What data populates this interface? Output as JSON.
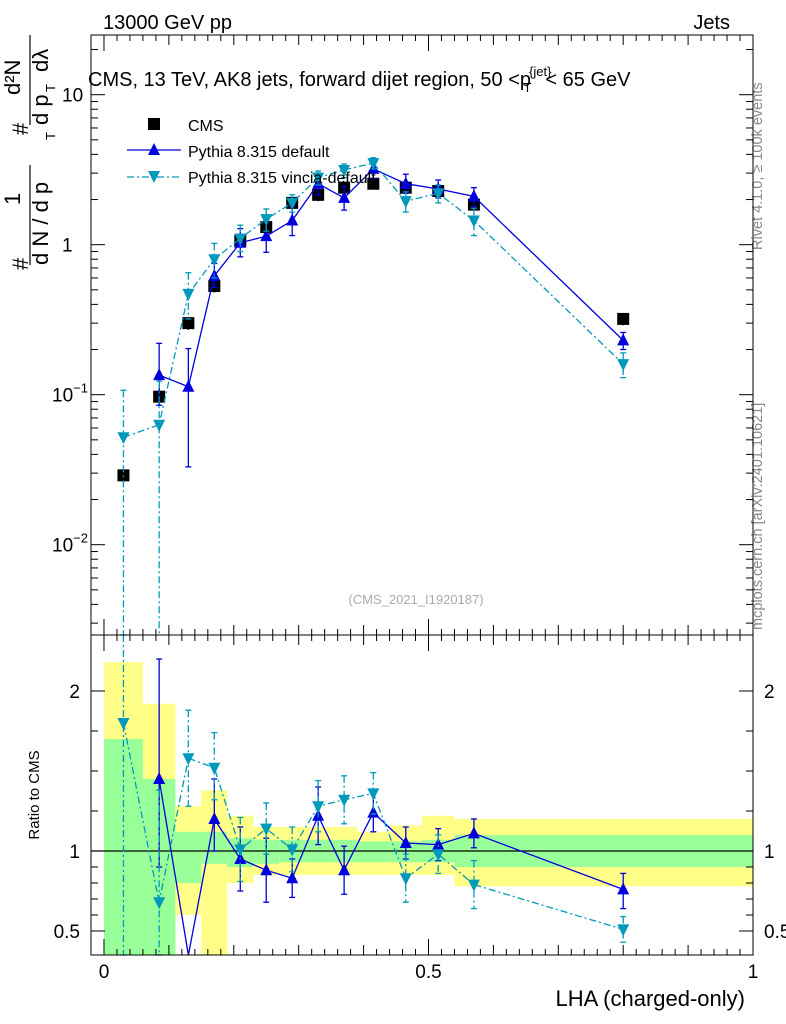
{
  "header": {
    "left": "13000 GeV pp",
    "right": "Jets"
  },
  "side_labels": {
    "rivet": "Rivet 4.1.0, ≥ 100k events",
    "mcplots": "mcplots.cern.ch [arXiv:2401.10621]"
  },
  "title": {
    "prefix": "CMS, 13 TeV, AK8 jets, forward dijet region, 50 <p",
    "sup": "{jet}",
    "sub": "T",
    "suffix": "< 65 GeV"
  },
  "analysis_id": "(CMS_2021_I1920187)",
  "colors": {
    "data": "#000000",
    "default": "#0000dd",
    "vincia": "#0099bb",
    "band_inner": "#99ff99",
    "band_outer": "#ffff88"
  },
  "chart_data": [
    {
      "type": "scatter",
      "panel": "main",
      "yscale": "log",
      "ylim": [
        0.0025,
        25
      ],
      "xlim": [
        -0.02,
        1.0
      ],
      "ylabel_parts": [
        "#",
        "1",
        "d N / d p",
        "T",
        "#",
        "d²N",
        "d p",
        "T",
        "dλ"
      ],
      "y_ticks": [
        {
          "value": 0.01,
          "base": "10",
          "exp": "−2"
        },
        {
          "value": 0.1,
          "base": "10",
          "exp": "−1"
        },
        {
          "value": 1,
          "base": "1",
          "exp": ""
        },
        {
          "value": 10,
          "base": "10",
          "exp": ""
        }
      ],
      "series": [
        {
          "name": "CMS",
          "marker": "square",
          "x": [
            0.03,
            0.085,
            0.13,
            0.17,
            0.21,
            0.25,
            0.29,
            0.33,
            0.37,
            0.415,
            0.465,
            0.515,
            0.57,
            0.8
          ],
          "y": [
            0.029,
            0.097,
            0.3,
            0.53,
            1.06,
            1.31,
            1.9,
            2.15,
            2.4,
            2.55,
            2.4,
            2.28,
            1.85,
            0.32
          ],
          "yerr_lo": [
            0.003,
            0.01,
            0.03,
            0.05,
            0.1,
            0.12,
            0.15,
            0.2,
            0.2,
            0.2,
            0.2,
            0.2,
            0.15,
            0.03
          ],
          "yerr_hi": [
            0.003,
            0.01,
            0.03,
            0.05,
            0.1,
            0.12,
            0.15,
            0.2,
            0.2,
            0.2,
            0.2,
            0.2,
            0.15,
            0.03
          ]
        },
        {
          "name": "Pythia 8.315 default",
          "marker": "triangle-up",
          "x": [
            0.085,
            0.13,
            0.17,
            0.21,
            0.25,
            0.29,
            0.33,
            0.37,
            0.415,
            0.465,
            0.515,
            0.57,
            0.8
          ],
          "y": [
            0.135,
            0.113,
            0.62,
            1.03,
            1.14,
            1.45,
            2.55,
            2.05,
            3.2,
            2.55,
            2.35,
            2.1,
            0.23
          ],
          "yerr_lo": [
            0.05,
            0.08,
            0.1,
            0.2,
            0.25,
            0.3,
            0.4,
            0.35,
            0.45,
            0.35,
            0.3,
            0.3,
            0.03
          ],
          "yerr_hi": [
            0.085,
            0.09,
            0.13,
            0.25,
            0.3,
            0.35,
            0.45,
            0.4,
            0.5,
            0.4,
            0.35,
            0.3,
            0.03
          ]
        },
        {
          "name": "Pythia 8.315 vincia-default",
          "marker": "triangle-down",
          "x": [
            0.03,
            0.085,
            0.13,
            0.17,
            0.21,
            0.25,
            0.29,
            0.33,
            0.37,
            0.415,
            0.465,
            0.515,
            0.57,
            0.8
          ],
          "y": [
            0.052,
            0.063,
            0.47,
            0.8,
            1.1,
            1.48,
            1.9,
            2.8,
            3.15,
            3.5,
            1.95,
            2.2,
            1.45,
            0.16
          ],
          "yerr_lo": [
            0.05,
            0.063,
            0.15,
            0.2,
            0.2,
            0.25,
            0.25,
            0.3,
            0.35,
            0.3,
            0.3,
            0.3,
            0.3,
            0.03
          ],
          "yerr_hi": [
            0.055,
            0.06,
            0.18,
            0.22,
            0.25,
            0.25,
            0.25,
            0.3,
            0.3,
            0.3,
            0.3,
            0.3,
            0.3,
            0.03
          ]
        }
      ]
    },
    {
      "type": "line",
      "panel": "ratio",
      "ylabel": "Ratio to CMS",
      "xlabel": "LHA (charged-only)",
      "ylim": [
        0.35,
        2.35
      ],
      "xlim": [
        -0.02,
        1.0
      ],
      "x_ticks": [
        {
          "value": 0,
          "label": "0"
        },
        {
          "value": 0.5,
          "label": "0.5"
        },
        {
          "value": 1,
          "label": "1"
        }
      ],
      "y_ticks": [
        {
          "value": 0.5,
          "label": "0.5"
        },
        {
          "value": 1,
          "label": "1"
        },
        {
          "value": 2,
          "label": "2"
        }
      ],
      "bands": {
        "edges": [
          0.0,
          0.06,
          0.11,
          0.15,
          0.19,
          0.23,
          0.27,
          0.31,
          0.35,
          0.39,
          0.44,
          0.49,
          0.54,
          0.6,
          1.0
        ],
        "inner_lo": [
          0.35,
          0.35,
          0.8,
          0.92,
          0.9,
          0.92,
          0.93,
          0.93,
          0.93,
          0.93,
          0.93,
          0.93,
          0.9,
          0.9
        ],
        "inner_hi": [
          1.7,
          1.45,
          1.12,
          1.12,
          1.08,
          1.07,
          1.07,
          1.07,
          1.07,
          1.06,
          1.06,
          1.07,
          1.1,
          1.1
        ],
        "outer_lo": [
          0.35,
          0.35,
          0.6,
          0.35,
          0.8,
          0.85,
          0.85,
          0.85,
          0.85,
          0.85,
          0.85,
          0.85,
          0.78,
          0.78
        ],
        "outer_hi": [
          2.18,
          1.92,
          1.28,
          1.38,
          1.22,
          1.15,
          1.15,
          1.15,
          1.15,
          1.12,
          1.16,
          1.22,
          1.2,
          1.2
        ]
      },
      "series": [
        {
          "name": "Pythia 8.315 default",
          "marker": "triangle-up",
          "x": [
            0.085,
            0.13,
            0.17,
            0.21,
            0.25,
            0.29,
            0.33,
            0.37,
            0.415,
            0.465,
            0.515,
            0.57,
            0.8
          ],
          "y": [
            1.45,
            0.35,
            1.2,
            0.95,
            0.88,
            0.83,
            1.22,
            0.88,
            1.24,
            1.05,
            1.04,
            1.11,
            0.76
          ],
          "yerr_lo": [
            0.55,
            0.0,
            0.2,
            0.2,
            0.2,
            0.12,
            0.18,
            0.15,
            0.12,
            0.1,
            0.1,
            0.09,
            0.12
          ],
          "yerr_hi": [
            0.75,
            0.0,
            0.25,
            0.2,
            0.2,
            0.12,
            0.18,
            0.15,
            0.12,
            0.1,
            0.1,
            0.09,
            0.1
          ]
        },
        {
          "name": "Pythia 8.315 vincia-default",
          "marker": "triangle-down",
          "x": [
            0.03,
            0.085,
            0.13,
            0.17,
            0.21,
            0.25,
            0.29,
            0.33,
            0.37,
            0.415,
            0.465,
            0.515,
            0.57,
            0.8
          ],
          "y": [
            1.8,
            0.68,
            1.58,
            1.52,
            1.01,
            1.14,
            1.01,
            1.28,
            1.32,
            1.36,
            0.83,
            0.98,
            0.79,
            0.51
          ],
          "yerr_lo": [
            1.45,
            0.33,
            0.3,
            0.2,
            0.2,
            0.16,
            0.14,
            0.16,
            0.15,
            0.13,
            0.15,
            0.12,
            0.15,
            0.08
          ],
          "yerr_hi": [
            0.55,
            0.7,
            0.3,
            0.22,
            0.2,
            0.16,
            0.14,
            0.16,
            0.15,
            0.13,
            0.15,
            0.12,
            0.15,
            0.08
          ]
        }
      ]
    }
  ]
}
